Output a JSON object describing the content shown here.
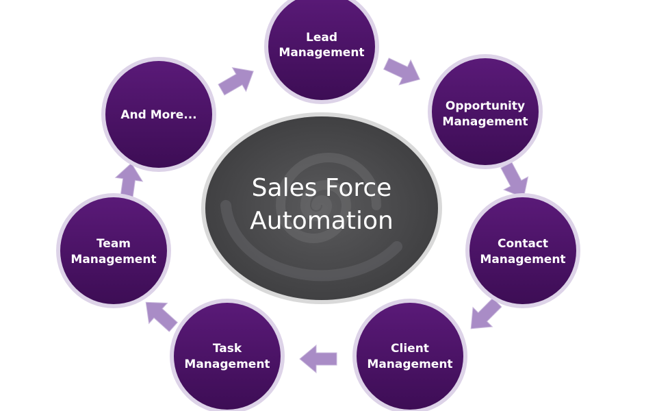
{
  "center": {
    "line1": "Sales Force",
    "line2": "Automation"
  },
  "nodes": [
    {
      "line1": "Lead",
      "line2": "Management"
    },
    {
      "line1": "Opportunity",
      "line2": "Management"
    },
    {
      "line1": "Contact",
      "line2": "Management"
    },
    {
      "line1": "Client",
      "line2": "Management"
    },
    {
      "line1": "Task",
      "line2": "Management"
    },
    {
      "line1": "Team",
      "line2": "Management"
    },
    {
      "line1": "And More...",
      "line2": ""
    }
  ],
  "colors": {
    "node_fill": "#4a1265",
    "node_ring": "#ddd3e8",
    "center_fill": "#4b4b4d",
    "center_ring": "#d9d9d9",
    "arrow_fill": "#a98cc6"
  }
}
